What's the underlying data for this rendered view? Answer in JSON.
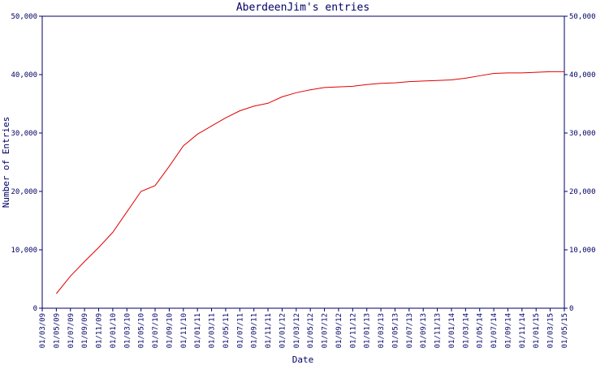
{
  "chart_data": {
    "type": "line",
    "title": "AberdeenJim's entries",
    "x_label": "Date",
    "y_label": "Number of Entries",
    "categories": [
      "01/03/09",
      "01/05/09",
      "01/07/09",
      "01/09/09",
      "01/11/09",
      "01/01/10",
      "01/03/10",
      "01/05/10",
      "01/07/10",
      "01/09/10",
      "01/11/10",
      "01/01/11",
      "01/03/11",
      "01/05/11",
      "01/07/11",
      "01/09/11",
      "01/11/11",
      "01/01/12",
      "01/03/12",
      "01/05/12",
      "01/07/12",
      "01/09/12",
      "01/11/12",
      "01/01/13",
      "01/03/13",
      "01/05/13",
      "01/07/13",
      "01/09/13",
      "01/11/13",
      "01/01/14",
      "01/03/14",
      "01/05/14",
      "01/07/14",
      "01/09/14",
      "01/11/14",
      "01/01/15",
      "01/03/15",
      "01/05/15"
    ],
    "series": [
      {
        "name": "Entries",
        "color": "#e00000",
        "values": [
          null,
          2500,
          5500,
          8000,
          10400,
          13000,
          16500,
          20000,
          21000,
          24300,
          27800,
          29800,
          31200,
          32600,
          33800,
          34600,
          35100,
          36200,
          36900,
          37400,
          37800,
          37900,
          38000,
          38300,
          38500,
          38600,
          38800,
          38900,
          39000,
          39100,
          39400,
          39800,
          40200,
          40300,
          40300,
          40400,
          40500,
          40500
        ]
      }
    ],
    "ylim": [
      0,
      50000
    ],
    "yticks": [
      0,
      {
        "value": 10000,
        "label": "10,000"
      },
      {
        "value": 20000,
        "label": "20,000"
      },
      {
        "value": 30000,
        "label": "30,000"
      },
      {
        "value": 40000,
        "label": "40,000"
      },
      {
        "value": 50000,
        "label": "50,000"
      }
    ],
    "axis_color": "#000066"
  }
}
